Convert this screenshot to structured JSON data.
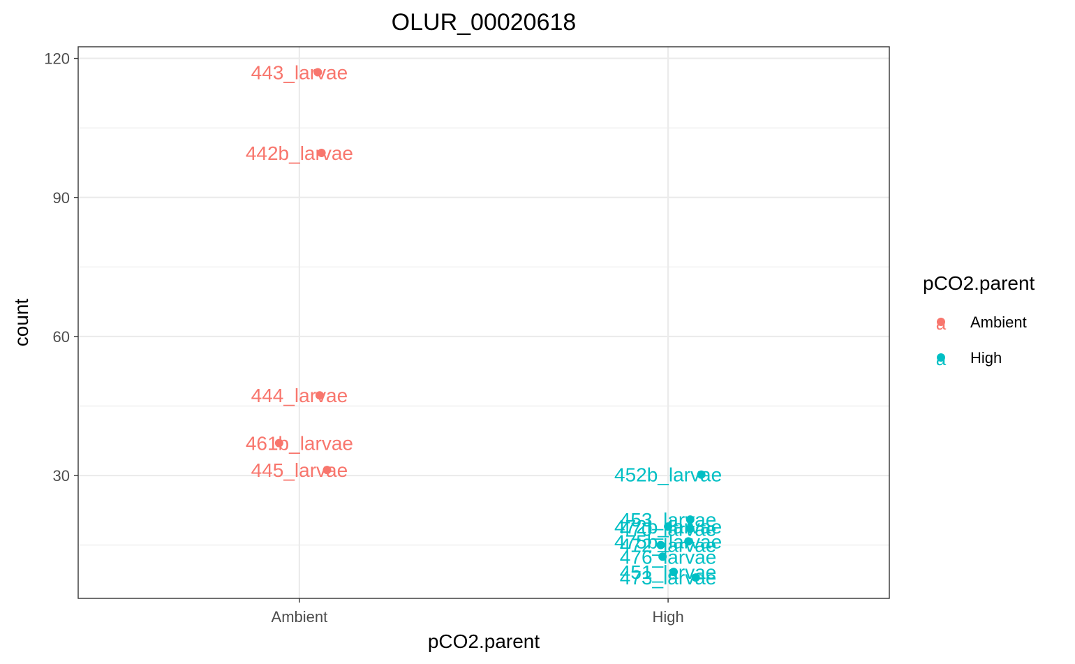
{
  "chart_data": {
    "type": "scatter",
    "title": "OLUR_00020618",
    "xlabel": "pCO2.parent",
    "ylabel": "count",
    "categories": [
      "Ambient",
      "High"
    ],
    "ylim": [
      3.5,
      122.5
    ],
    "yticks": [
      30,
      60,
      90,
      120
    ],
    "yminor": [
      15,
      45,
      75,
      105
    ],
    "grid": true,
    "legend": {
      "title": "pCO2.parent",
      "position": "right",
      "entries": [
        {
          "label": "Ambient",
          "color": "#F8766D",
          "glyph": "a"
        },
        {
          "label": "High",
          "color": "#00BFC4",
          "glyph": "a"
        }
      ]
    },
    "series": [
      {
        "name": "Ambient",
        "color": "#F8766D",
        "points": [
          {
            "category": "Ambient",
            "jitter": 0.05,
            "y": 117,
            "label": "443_larvae"
          },
          {
            "category": "Ambient",
            "jitter": 0.06,
            "y": 99.6,
            "label": "442b_larvae"
          },
          {
            "category": "Ambient",
            "jitter": 0.055,
            "y": 47.3,
            "label": "444_larvae"
          },
          {
            "category": "Ambient",
            "jitter": -0.055,
            "y": 37,
            "label": "461b_larvae"
          },
          {
            "category": "Ambient",
            "jitter": 0.075,
            "y": 31.2,
            "label": "445_larvae"
          }
        ]
      },
      {
        "name": "High",
        "color": "#00BFC4",
        "points": [
          {
            "category": "High",
            "jitter": 0.09,
            "y": 30.2,
            "label": "452b_larvae"
          },
          {
            "category": "High",
            "jitter": 0.06,
            "y": 20.5,
            "label": "453_larvae"
          },
          {
            "category": "High",
            "jitter": 0.0,
            "y": 19.0,
            "label": "472b_larvae"
          },
          {
            "category": "High",
            "jitter": 0.06,
            "y": 18.5,
            "label": "470_larvae"
          },
          {
            "category": "High",
            "jitter": 0.055,
            "y": 15.8,
            "label": "475b_larvae"
          },
          {
            "category": "High",
            "jitter": -0.02,
            "y": 15.0,
            "label": "472_larvae"
          },
          {
            "category": "High",
            "jitter": -0.015,
            "y": 12.5,
            "label": "476_larvae"
          },
          {
            "category": "High",
            "jitter": 0.015,
            "y": 9.2,
            "label": "451_larvae"
          },
          {
            "category": "High",
            "jitter": 0.075,
            "y": 8.0,
            "label": "473_larvae"
          }
        ]
      }
    ]
  }
}
